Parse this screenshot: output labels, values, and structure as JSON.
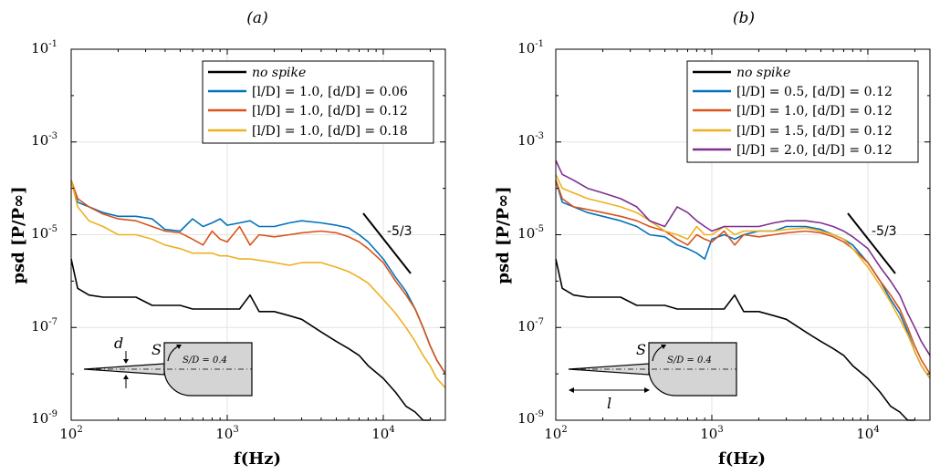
{
  "chart_data": [
    {
      "type": "line",
      "panel_label": "(a)",
      "xlabel": "f(Hz)",
      "ylabel": "psd [P/P∞]",
      "xscale": "log",
      "yscale": "log",
      "xlim": [
        100,
        25000
      ],
      "ylim": [
        1e-09,
        0.1
      ],
      "grid": true,
      "legend_position": "top-right",
      "x_ticks": [
        {
          "base": "10",
          "exp": "2"
        },
        {
          "base": "10",
          "exp": "3"
        },
        {
          "base": "10",
          "exp": "4"
        }
      ],
      "y_ticks": [
        {
          "base": "10",
          "exp": "-9"
        },
        {
          "base": "10",
          "exp": "-7"
        },
        {
          "base": "10",
          "exp": "-5"
        },
        {
          "base": "10",
          "exp": "-3"
        },
        {
          "base": "10",
          "exp": "-1"
        }
      ],
      "slope_annotation": "-5/3",
      "inset": {
        "d_label": "d",
        "s_label": "S",
        "s_over_d": "S/D = 0.4"
      },
      "series": [
        {
          "name": "no spike",
          "color": "#000000",
          "x": [
            100,
            110,
            130,
            160,
            200,
            260,
            330,
            400,
            500,
            600,
            700,
            800,
            900,
            1000,
            1200,
            1400,
            1600,
            2000,
            2500,
            3000,
            4000,
            5000,
            6000,
            7000,
            8000,
            10000,
            12000,
            14000,
            16000,
            18000,
            20000
          ],
          "y": [
            3e-06,
            7e-07,
            5e-07,
            4.5e-07,
            4.5e-07,
            4.5e-07,
            3e-07,
            3e-07,
            3e-07,
            2.5e-07,
            2.5e-07,
            2.5e-07,
            2.5e-07,
            2.5e-07,
            2.5e-07,
            5e-07,
            2.2e-07,
            2.2e-07,
            1.8e-07,
            1.5e-07,
            8e-08,
            5e-08,
            3.5e-08,
            2.5e-08,
            1.5e-08,
            8e-09,
            4e-09,
            2e-09,
            1.5e-09,
            1e-09,
            1e-09
          ]
        },
        {
          "name": "[l/D] = 1.0,  [d/D] = 0.06",
          "color": "#0072BD",
          "x": [
            100,
            110,
            130,
            160,
            200,
            260,
            330,
            400,
            500,
            600,
            700,
            800,
            900,
            1000,
            1200,
            1400,
            1600,
            2000,
            2500,
            3000,
            4000,
            5000,
            6000,
            7000,
            8000,
            10000,
            12000,
            14000,
            16000,
            18000,
            20000,
            22000,
            25000
          ],
          "y": [
            0.00015,
            5e-05,
            4e-05,
            3e-05,
            2.5e-05,
            2.5e-05,
            2.2e-05,
            1.3e-05,
            1.2e-05,
            2.2e-05,
            1.5e-05,
            1.8e-05,
            2.2e-05,
            1.6e-05,
            1.8e-05,
            2e-05,
            1.5e-05,
            1.5e-05,
            1.8e-05,
            2e-05,
            1.8e-05,
            1.6e-05,
            1.4e-05,
            1e-05,
            7e-06,
            3e-06,
            1.2e-06,
            6e-07,
            2.5e-07,
            1e-07,
            4e-08,
            2e-08,
            1e-08
          ]
        },
        {
          "name": "[l/D] = 1.0,  [d/D] = 0.12",
          "color": "#D95319",
          "x": [
            100,
            110,
            130,
            160,
            200,
            260,
            330,
            400,
            500,
            600,
            700,
            800,
            900,
            1000,
            1200,
            1400,
            1600,
            2000,
            2500,
            3000,
            4000,
            5000,
            6000,
            7000,
            8000,
            10000,
            12000,
            14000,
            16000,
            18000,
            20000,
            22000,
            25000
          ],
          "y": [
            0.00015,
            6e-05,
            4e-05,
            2.8e-05,
            2.2e-05,
            2e-05,
            1.5e-05,
            1.2e-05,
            1.1e-05,
            8e-06,
            6e-06,
            1.2e-05,
            8e-06,
            7e-06,
            1.5e-05,
            6e-06,
            1e-05,
            9e-06,
            1e-05,
            1.1e-05,
            1.2e-05,
            1.1e-05,
            9e-06,
            7e-06,
            5e-06,
            2.5e-06,
            1e-06,
            5e-07,
            2.5e-07,
            1e-07,
            4e-08,
            2e-08,
            1e-08
          ]
        },
        {
          "name": "[l/D] = 1.0,  [d/D] = 0.18",
          "color": "#EDB120",
          "x": [
            100,
            110,
            130,
            160,
            200,
            260,
            330,
            400,
            500,
            600,
            700,
            800,
            900,
            1000,
            1200,
            1400,
            1600,
            2000,
            2500,
            3000,
            4000,
            5000,
            6000,
            7000,
            8000,
            10000,
            12000,
            14000,
            16000,
            18000,
            20000,
            22000,
            25000
          ],
          "y": [
            0.00015,
            4e-05,
            2e-05,
            1.5e-05,
            1e-05,
            1e-05,
            8e-06,
            6e-06,
            5e-06,
            4e-06,
            4e-06,
            4e-06,
            3.5e-06,
            3.5e-06,
            3e-06,
            3e-06,
            2.8e-06,
            2.5e-06,
            2.2e-06,
            2.5e-06,
            2.5e-06,
            2e-06,
            1.6e-06,
            1.2e-06,
            9e-07,
            4e-07,
            2e-07,
            1e-07,
            5e-08,
            2.5e-08,
            1.5e-08,
            8e-09,
            5e-09
          ]
        }
      ]
    },
    {
      "type": "line",
      "panel_label": "(b)",
      "xlabel": "f(Hz)",
      "ylabel": "psd [P/P∞]",
      "xscale": "log",
      "yscale": "log",
      "xlim": [
        100,
        25000
      ],
      "ylim": [
        1e-09,
        0.1
      ],
      "grid": true,
      "legend_position": "top-right",
      "x_ticks": [
        {
          "base": "10",
          "exp": "2"
        },
        {
          "base": "10",
          "exp": "3"
        },
        {
          "base": "10",
          "exp": "4"
        }
      ],
      "y_ticks": [
        {
          "base": "10",
          "exp": "-9"
        },
        {
          "base": "10",
          "exp": "-7"
        },
        {
          "base": "10",
          "exp": "-5"
        },
        {
          "base": "10",
          "exp": "-3"
        },
        {
          "base": "10",
          "exp": "-1"
        }
      ],
      "slope_annotation": "-5/3",
      "inset": {
        "l_label": "l",
        "s_label": "S",
        "s_over_d": "S/D = 0.4"
      },
      "series": [
        {
          "name": "no spike",
          "color": "#000000",
          "x": [
            100,
            110,
            130,
            160,
            200,
            260,
            330,
            400,
            500,
            600,
            700,
            800,
            900,
            1000,
            1200,
            1400,
            1600,
            2000,
            2500,
            3000,
            4000,
            5000,
            6000,
            7000,
            8000,
            10000,
            12000,
            14000,
            16000,
            18000,
            20000
          ],
          "y": [
            3e-06,
            7e-07,
            5e-07,
            4.5e-07,
            4.5e-07,
            4.5e-07,
            3e-07,
            3e-07,
            3e-07,
            2.5e-07,
            2.5e-07,
            2.5e-07,
            2.5e-07,
            2.5e-07,
            2.5e-07,
            5e-07,
            2.2e-07,
            2.2e-07,
            1.8e-07,
            1.5e-07,
            8e-08,
            5e-08,
            3.5e-08,
            2.5e-08,
            1.5e-08,
            8e-09,
            4e-09,
            2e-09,
            1.5e-09,
            1e-09,
            1e-09
          ]
        },
        {
          "name": "[l/D] = 0.5,  [d/D] = 0.12",
          "color": "#0072BD",
          "x": [
            100,
            110,
            130,
            160,
            200,
            260,
            330,
            400,
            500,
            600,
            700,
            800,
            900,
            1000,
            1200,
            1400,
            1600,
            2000,
            2500,
            3000,
            4000,
            5000,
            6000,
            7000,
            8000,
            10000,
            12000,
            14000,
            16000,
            18000,
            20000,
            22000,
            25000
          ],
          "y": [
            0.00015,
            5e-05,
            4e-05,
            3e-05,
            2.5e-05,
            2e-05,
            1.5e-05,
            1e-05,
            9e-06,
            6e-06,
            5e-06,
            4e-06,
            3e-06,
            8e-06,
            1e-05,
            8e-06,
            1e-05,
            1.2e-05,
            1.2e-05,
            1.5e-05,
            1.5e-05,
            1.3e-05,
            1e-05,
            8e-06,
            6e-06,
            2.5e-06,
            1e-06,
            4e-07,
            2e-07,
            8e-08,
            3e-08,
            1.5e-08,
            8e-09
          ]
        },
        {
          "name": "[l/D] = 1.0,  [d/D] = 0.12",
          "color": "#D95319",
          "x": [
            100,
            110,
            130,
            160,
            200,
            260,
            330,
            400,
            500,
            600,
            700,
            800,
            900,
            1000,
            1200,
            1400,
            1600,
            2000,
            2500,
            3000,
            4000,
            5000,
            6000,
            7000,
            8000,
            10000,
            12000,
            14000,
            16000,
            18000,
            20000,
            22000,
            25000
          ],
          "y": [
            0.00015,
            6e-05,
            4e-05,
            3.5e-05,
            3e-05,
            2.5e-05,
            2e-05,
            1.5e-05,
            1.2e-05,
            8e-06,
            6e-06,
            1e-05,
            8e-06,
            7e-06,
            1.2e-05,
            6e-06,
            1e-05,
            9e-06,
            1e-05,
            1.1e-05,
            1.2e-05,
            1.1e-05,
            9e-06,
            7e-06,
            5e-06,
            2.5e-06,
            1e-06,
            5e-07,
            2.5e-07,
            1e-07,
            4e-08,
            2e-08,
            1e-08
          ]
        },
        {
          "name": "[l/D] = 1.5,  [d/D] = 0.12",
          "color": "#EDB120",
          "x": [
            100,
            110,
            130,
            160,
            200,
            260,
            330,
            400,
            500,
            600,
            700,
            800,
            900,
            1000,
            1200,
            1400,
            1600,
            2000,
            2500,
            3000,
            4000,
            5000,
            6000,
            7000,
            8000,
            10000,
            12000,
            14000,
            16000,
            18000,
            20000,
            22000,
            25000
          ],
          "y": [
            0.0002,
            0.0001,
            8e-05,
            6e-05,
            5e-05,
            4e-05,
            3e-05,
            2e-05,
            1.2e-05,
            1e-05,
            8e-06,
            1.5e-05,
            1e-05,
            1e-05,
            1.5e-05,
            1e-05,
            1.2e-05,
            1.2e-05,
            1.2e-05,
            1.3e-05,
            1.4e-05,
            1.2e-05,
            1e-05,
            8e-06,
            5e-06,
            2e-06,
            8e-07,
            3.5e-07,
            1.5e-07,
            7e-08,
            3e-08,
            1.5e-08,
            8e-09
          ]
        },
        {
          "name": "[l/D] = 2.0,  [d/D] = 0.12",
          "color": "#7E2F8E",
          "x": [
            100,
            110,
            130,
            160,
            200,
            260,
            330,
            400,
            500,
            600,
            700,
            800,
            900,
            1000,
            1200,
            1400,
            1600,
            2000,
            2500,
            3000,
            4000,
            5000,
            6000,
            7000,
            8000,
            10000,
            12000,
            14000,
            16000,
            18000,
            20000,
            22000,
            25000
          ],
          "y": [
            0.0004,
            0.0002,
            0.00015,
            0.0001,
            8e-05,
            6e-05,
            4e-05,
            2e-05,
            1.5e-05,
            4e-05,
            3e-05,
            2e-05,
            1.5e-05,
            1.2e-05,
            1.5e-05,
            1.5e-05,
            1.5e-05,
            1.5e-05,
            1.8e-05,
            2e-05,
            2e-05,
            1.8e-05,
            1.5e-05,
            1.2e-05,
            9e-06,
            5e-06,
            2e-06,
            1e-06,
            5e-07,
            2e-07,
            1e-07,
            5e-08,
            2.5e-08
          ]
        }
      ]
    }
  ]
}
